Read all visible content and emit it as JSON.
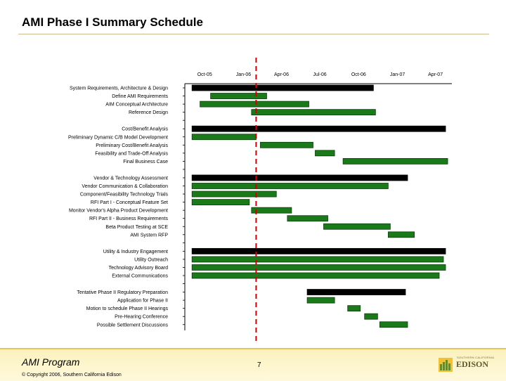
{
  "page": {
    "title": "AMI Phase I Summary Schedule",
    "footer_program": "AMI Program",
    "footer_copyright": "© Copyright 2006, Southern California Edison",
    "page_number": "7",
    "logo_name": "EDISON",
    "logo_sub": "SOUTHERN CALIFORNIA"
  },
  "colors": {
    "summary_bar": "#000000",
    "task_bar": "#1a7a1a",
    "task_border": "#0d3d0d",
    "today_line": "#cc0000"
  },
  "chart_data": {
    "type": "gantt",
    "x_ticks": [
      "Oct-05",
      "Jan-06",
      "Apr-06",
      "Jul-06",
      "Oct-06",
      "Jan-07",
      "Apr-07"
    ],
    "xlim": [
      "2005-08-15",
      "2007-05-10"
    ],
    "today": "2006-01-31",
    "groups": [
      {
        "name": "System Requirements, Architecture & Design",
        "start": "2005-09-01",
        "end": "2006-11-05",
        "tasks": [
          {
            "name": "Define AMI Requirements",
            "start": "2005-10-15",
            "end": "2006-02-25"
          },
          {
            "name": "AIM Conceptual Architecture",
            "start": "2005-09-20",
            "end": "2006-06-05"
          },
          {
            "name": "Reference Design",
            "start": "2006-01-20",
            "end": "2006-11-10"
          }
        ]
      },
      {
        "name": "Cost/Benefit Analysis",
        "start": "2005-09-01",
        "end": "2007-04-25",
        "tasks": [
          {
            "name": "Preliminary Dynamic C/B Model Development",
            "start": "2005-09-01",
            "end": "2006-01-31"
          },
          {
            "name": "Preliminary Cost/Benefit Analysis",
            "start": "2006-02-10",
            "end": "2006-06-15"
          },
          {
            "name": "Feasibility and Trade-Off Analysis",
            "start": "2006-06-20",
            "end": "2006-08-05"
          },
          {
            "name": "Final Business Case",
            "start": "2006-08-25",
            "end": "2007-04-30"
          }
        ]
      },
      {
        "name": "Vendor & Technology Assessment",
        "start": "2005-09-01",
        "end": "2007-01-25",
        "tasks": [
          {
            "name": "Vendor Communication & Collaboration",
            "start": "2005-09-01",
            "end": "2006-12-10"
          },
          {
            "name": "Component/Feasibility Technology Trials",
            "start": "2005-09-01",
            "end": "2006-03-20"
          },
          {
            "name": "RFI Part I - Conceptual Feature Set",
            "start": "2005-09-01",
            "end": "2006-01-15"
          },
          {
            "name": "Monitor Vendor's Alpha Product Development",
            "start": "2006-01-20",
            "end": "2006-04-25"
          },
          {
            "name": "RFI Part II - Business Requirements",
            "start": "2006-04-15",
            "end": "2006-07-20"
          },
          {
            "name": "Beta Product Testing at SCE",
            "start": "2006-07-10",
            "end": "2006-12-15"
          },
          {
            "name": "AMI System RFP",
            "start": "2006-12-10",
            "end": "2007-02-10"
          }
        ]
      },
      {
        "name": "Utility & Industry Engagement",
        "start": "2005-09-01",
        "end": "2007-04-25",
        "tasks": [
          {
            "name": "Utility Outreach",
            "start": "2005-09-01",
            "end": "2007-04-20"
          },
          {
            "name": "Technology Advisory Board",
            "start": "2005-09-01",
            "end": "2007-04-25"
          },
          {
            "name": "External Communications",
            "start": "2005-09-01",
            "end": "2007-04-10"
          }
        ]
      },
      {
        "name": "Tentative Phase II Regulatory Preparation",
        "start": "2006-06-01",
        "end": "2007-01-20",
        "tasks": [
          {
            "name": "Application for Phase II",
            "start": "2006-06-01",
            "end": "2006-08-05"
          },
          {
            "name": "Motion to schedule Phase II Hearings",
            "start": "2006-09-05",
            "end": "2006-10-05"
          },
          {
            "name": "Pre-Hearing Conference",
            "start": "2006-10-15",
            "end": "2006-11-15"
          },
          {
            "name": "Possible Settlement Discussions",
            "start": "2006-11-20",
            "end": "2007-01-25"
          }
        ]
      }
    ]
  }
}
